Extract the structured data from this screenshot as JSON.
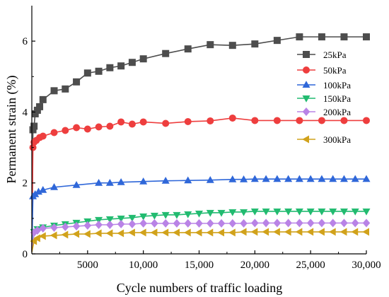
{
  "chart_data": {
    "type": "line",
    "xlabel": "Cycle numbers of traffic loading",
    "ylabel": "Permanent strain (%)",
    "xlim": [
      0,
      30000
    ],
    "ylim": [
      0,
      7
    ],
    "x_ticks": [
      {
        "value": 5000,
        "label": "5000"
      },
      {
        "value": 10000,
        "label": "10,000"
      },
      {
        "value": 15000,
        "label": "15,000"
      },
      {
        "value": 20000,
        "label": "20,000"
      },
      {
        "value": 25000,
        "label": "25,000"
      },
      {
        "value": 30000,
        "label": "30,000"
      }
    ],
    "y_ticks": [
      {
        "value": 0,
        "label": "0"
      },
      {
        "value": 2,
        "label": "2"
      },
      {
        "value": 4,
        "label": "4"
      },
      {
        "value": 6,
        "label": "6"
      }
    ],
    "grid": false,
    "legend_position": "right",
    "series": [
      {
        "name": "25kPa",
        "color": "#4d4d4d",
        "marker": "square",
        "points": [
          [
            0,
            0.1
          ],
          [
            100,
            3.5
          ],
          [
            200,
            3.6
          ],
          [
            300,
            3.95
          ],
          [
            500,
            4.05
          ],
          [
            700,
            4.15
          ],
          [
            1000,
            4.35
          ],
          [
            2000,
            4.6
          ],
          [
            3000,
            4.65
          ],
          [
            4000,
            4.85
          ],
          [
            5000,
            5.1
          ],
          [
            6000,
            5.15
          ],
          [
            7000,
            5.25
          ],
          [
            8000,
            5.3
          ],
          [
            9000,
            5.4
          ],
          [
            10000,
            5.5
          ],
          [
            12000,
            5.65
          ],
          [
            14000,
            5.78
          ],
          [
            16000,
            5.9
          ],
          [
            18000,
            5.88
          ],
          [
            20000,
            5.92
          ],
          [
            22000,
            6.02
          ],
          [
            24000,
            6.12
          ],
          [
            26000,
            6.12
          ],
          [
            28000,
            6.12
          ],
          [
            30000,
            6.12
          ]
        ]
      },
      {
        "name": "50kPa",
        "color": "#ee3e3e",
        "marker": "circle",
        "points": [
          [
            0,
            0.05
          ],
          [
            100,
            3.0
          ],
          [
            200,
            3.15
          ],
          [
            400,
            3.2
          ],
          [
            700,
            3.28
          ],
          [
            1000,
            3.32
          ],
          [
            2000,
            3.42
          ],
          [
            3000,
            3.48
          ],
          [
            4000,
            3.56
          ],
          [
            5000,
            3.52
          ],
          [
            6000,
            3.58
          ],
          [
            7000,
            3.6
          ],
          [
            8000,
            3.72
          ],
          [
            9000,
            3.66
          ],
          [
            10000,
            3.72
          ],
          [
            12000,
            3.68
          ],
          [
            14000,
            3.73
          ],
          [
            16000,
            3.75
          ],
          [
            18000,
            3.83
          ],
          [
            20000,
            3.76
          ],
          [
            22000,
            3.76
          ],
          [
            24000,
            3.76
          ],
          [
            26000,
            3.76
          ],
          [
            28000,
            3.76
          ],
          [
            30000,
            3.76
          ]
        ]
      },
      {
        "name": "100kPa",
        "color": "#2f67d9",
        "marker": "triangle-up",
        "points": [
          [
            0,
            0.05
          ],
          [
            100,
            1.62
          ],
          [
            300,
            1.68
          ],
          [
            600,
            1.75
          ],
          [
            1000,
            1.8
          ],
          [
            2000,
            1.88
          ],
          [
            4000,
            1.94
          ],
          [
            6000,
            2.0
          ],
          [
            7000,
            2.0
          ],
          [
            8000,
            2.02
          ],
          [
            10000,
            2.04
          ],
          [
            12000,
            2.06
          ],
          [
            14000,
            2.07
          ],
          [
            16000,
            2.08
          ],
          [
            18000,
            2.1
          ],
          [
            19000,
            2.1
          ],
          [
            20000,
            2.11
          ],
          [
            21000,
            2.11
          ],
          [
            22000,
            2.11
          ],
          [
            23000,
            2.11
          ],
          [
            24000,
            2.11
          ],
          [
            25000,
            2.11
          ],
          [
            26000,
            2.11
          ],
          [
            27000,
            2.11
          ],
          [
            28000,
            2.11
          ],
          [
            29000,
            2.11
          ],
          [
            30000,
            2.11
          ]
        ]
      },
      {
        "name": "150kPa",
        "color": "#22bb70",
        "marker": "triangle-down",
        "points": [
          [
            0,
            0.05
          ],
          [
            200,
            0.62
          ],
          [
            500,
            0.7
          ],
          [
            1000,
            0.75
          ],
          [
            2000,
            0.8
          ],
          [
            3000,
            0.84
          ],
          [
            4000,
            0.88
          ],
          [
            5000,
            0.92
          ],
          [
            6000,
            0.96
          ],
          [
            7000,
            0.98
          ],
          [
            8000,
            1.0
          ],
          [
            9000,
            1.02
          ],
          [
            10000,
            1.06
          ],
          [
            11000,
            1.08
          ],
          [
            12000,
            1.1
          ],
          [
            13000,
            1.1
          ],
          [
            14000,
            1.12
          ],
          [
            15000,
            1.14
          ],
          [
            16000,
            1.16
          ],
          [
            17000,
            1.16
          ],
          [
            18000,
            1.18
          ],
          [
            19000,
            1.18
          ],
          [
            20000,
            1.2
          ],
          [
            21000,
            1.2
          ],
          [
            22000,
            1.2
          ],
          [
            23000,
            1.2
          ],
          [
            24000,
            1.2
          ],
          [
            25000,
            1.2
          ],
          [
            26000,
            1.2
          ],
          [
            27000,
            1.2
          ],
          [
            28000,
            1.2
          ],
          [
            29000,
            1.2
          ],
          [
            30000,
            1.2
          ]
        ]
      },
      {
        "name": "200kPa",
        "color": "#b983e6",
        "marker": "diamond",
        "points": [
          [
            0,
            0.05
          ],
          [
            200,
            0.6
          ],
          [
            500,
            0.66
          ],
          [
            1000,
            0.72
          ],
          [
            2000,
            0.74
          ],
          [
            3000,
            0.76
          ],
          [
            4000,
            0.78
          ],
          [
            5000,
            0.8
          ],
          [
            6000,
            0.82
          ],
          [
            7000,
            0.82
          ],
          [
            8000,
            0.84
          ],
          [
            9000,
            0.84
          ],
          [
            10000,
            0.86
          ],
          [
            11000,
            0.86
          ],
          [
            12000,
            0.86
          ],
          [
            13000,
            0.86
          ],
          [
            14000,
            0.86
          ],
          [
            15000,
            0.86
          ],
          [
            16000,
            0.86
          ],
          [
            17000,
            0.86
          ],
          [
            18000,
            0.86
          ],
          [
            19000,
            0.86
          ],
          [
            20000,
            0.87
          ],
          [
            21000,
            0.87
          ],
          [
            22000,
            0.87
          ],
          [
            23000,
            0.87
          ],
          [
            24000,
            0.87
          ],
          [
            25000,
            0.87
          ],
          [
            26000,
            0.87
          ],
          [
            27000,
            0.87
          ],
          [
            28000,
            0.87
          ],
          [
            29000,
            0.87
          ],
          [
            30000,
            0.87
          ]
        ]
      },
      {
        "name": "300kPa",
        "color": "#d1a21b",
        "marker": "triangle-left",
        "points": [
          [
            0,
            0.05
          ],
          [
            200,
            0.36
          ],
          [
            500,
            0.44
          ],
          [
            1000,
            0.5
          ],
          [
            2000,
            0.52
          ],
          [
            3000,
            0.54
          ],
          [
            4000,
            0.56
          ],
          [
            5000,
            0.56
          ],
          [
            6000,
            0.58
          ],
          [
            7000,
            0.58
          ],
          [
            8000,
            0.58
          ],
          [
            9000,
            0.6
          ],
          [
            10000,
            0.6
          ],
          [
            11000,
            0.6
          ],
          [
            12000,
            0.6
          ],
          [
            13000,
            0.6
          ],
          [
            14000,
            0.6
          ],
          [
            15000,
            0.6
          ],
          [
            16000,
            0.6
          ],
          [
            17000,
            0.6
          ],
          [
            18000,
            0.6
          ],
          [
            19000,
            0.62
          ],
          [
            20000,
            0.62
          ],
          [
            21000,
            0.62
          ],
          [
            22000,
            0.62
          ],
          [
            23000,
            0.62
          ],
          [
            24000,
            0.62
          ],
          [
            25000,
            0.62
          ],
          [
            26000,
            0.62
          ],
          [
            27000,
            0.62
          ],
          [
            28000,
            0.62
          ],
          [
            29000,
            0.62
          ],
          [
            30000,
            0.62
          ]
        ]
      }
    ]
  }
}
